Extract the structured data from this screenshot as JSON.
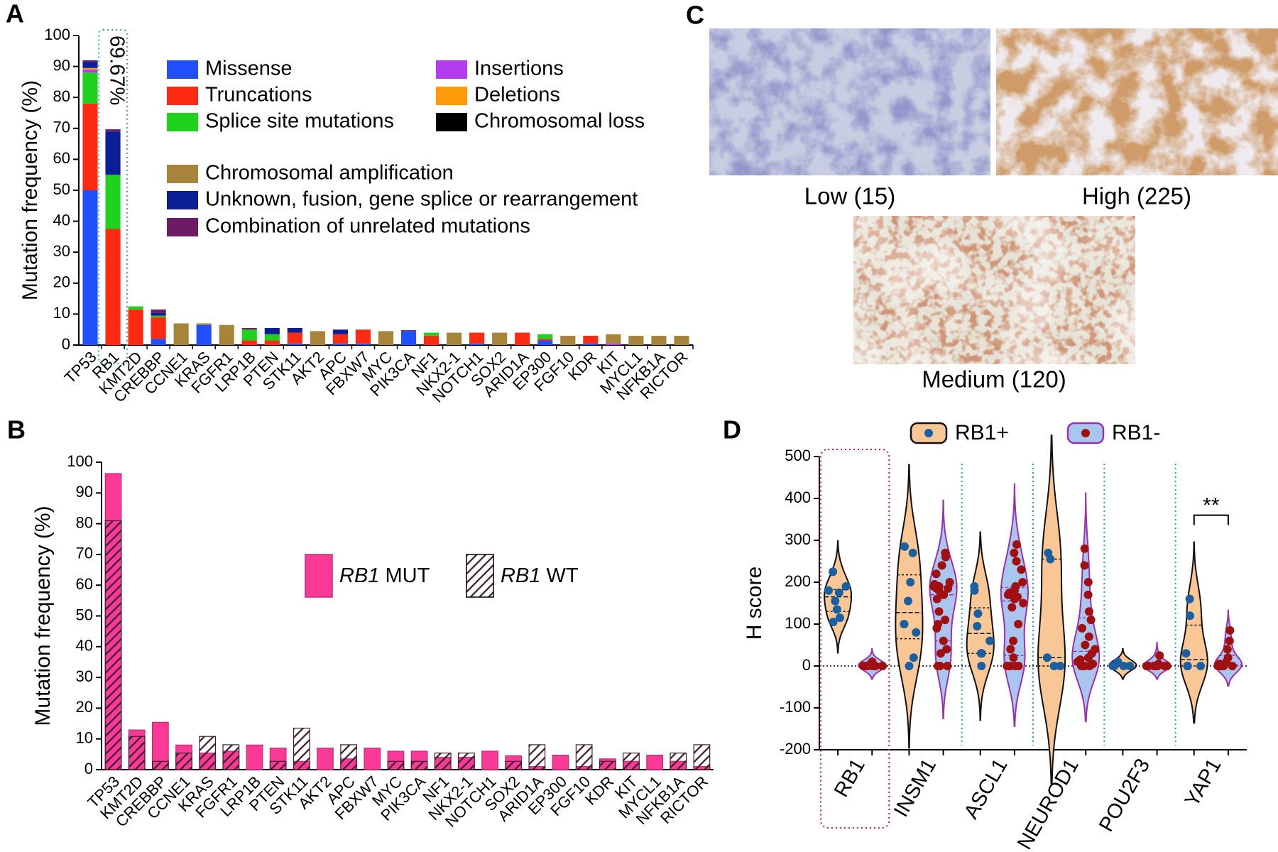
{
  "panel_labels": [
    "A",
    "B",
    "C",
    "D"
  ],
  "panel_c": {
    "images": [
      {
        "label": "Low (15)"
      },
      {
        "label": "High (225)"
      },
      {
        "label": "Medium (120)"
      }
    ]
  },
  "chart_data": [
    {
      "type": "stacked-bar",
      "ylabel": "Mutation frequency (%)",
      "categories": [
        "TP53",
        "RB1",
        "KMT2D",
        "CREBBP",
        "CCNE1",
        "KRAS",
        "FGFR1",
        "LRP1B",
        "PTEN",
        "STK11",
        "AKT2",
        "APC",
        "FBXW7",
        "MYC",
        "PIK3CA",
        "NF1",
        "NKX2-1",
        "NOTCH1",
        "SOX2",
        "ARID1A",
        "EP300",
        "FGF10",
        "KDR",
        "KIT",
        "MYCL1",
        "NFKB1A",
        "RICTOR"
      ],
      "ylim": [
        0,
        100
      ],
      "yticks": [
        0,
        10,
        20,
        30,
        40,
        50,
        60,
        70,
        80,
        90,
        100
      ],
      "annotation": {
        "text": "69.67%",
        "category": "RB1",
        "color": "#e8231b"
      },
      "series": [
        {
          "name": "Missense",
          "color": "#1f4fff",
          "values": [
            50,
            0,
            0,
            2,
            0,
            6.5,
            0,
            0,
            0,
            0.5,
            0,
            0.5,
            0.5,
            0,
            4.5,
            0,
            0,
            0.5,
            0,
            0,
            1.5,
            0,
            0.5,
            0,
            0,
            0,
            0
          ]
        },
        {
          "name": "Truncations",
          "color": "#ff2a12",
          "values": [
            28,
            37.5,
            11.5,
            7,
            0,
            0,
            0,
            1.5,
            1.5,
            3.5,
            0,
            3,
            4.5,
            0,
            0,
            3,
            0,
            3.5,
            0,
            4,
            0.5,
            0,
            2.5,
            0,
            0,
            0,
            0
          ]
        },
        {
          "name": "Splice site mutations",
          "color": "#1ed21e",
          "values": [
            10,
            17.5,
            1,
            0.5,
            0,
            0,
            0,
            3.5,
            2,
            0,
            0,
            0,
            0,
            0,
            0,
            1,
            0,
            0,
            0,
            0,
            1.5,
            0,
            0,
            0,
            0,
            0,
            0
          ]
        },
        {
          "name": "Insertions",
          "color": "#b43cf0",
          "values": [
            1,
            0,
            0,
            0,
            0,
            0,
            0,
            0,
            0,
            0,
            0,
            0,
            0,
            0,
            0,
            0,
            0,
            0,
            0,
            0,
            0,
            0,
            0,
            0.5,
            0,
            0,
            0
          ]
        },
        {
          "name": "Deletions",
          "color": "#ff9a0a",
          "values": [
            0.5,
            0,
            0,
            0,
            0,
            0,
            0,
            0,
            0,
            0,
            0,
            0,
            0,
            0,
            0,
            0,
            0,
            0,
            0,
            0,
            0,
            0,
            0,
            0,
            0,
            0,
            0
          ]
        },
        {
          "name": "Chromosomal loss",
          "color": "#000000",
          "values": [
            0,
            0,
            0,
            0,
            0,
            0,
            0,
            0,
            0,
            0,
            0,
            0,
            0,
            0,
            0,
            0,
            0,
            0,
            0,
            0,
            0,
            0,
            0,
            0,
            0,
            0,
            0
          ]
        },
        {
          "name": "Chromosomal amplification",
          "color": "#a8843a",
          "values": [
            0,
            0,
            0,
            0,
            7,
            0.5,
            6.5,
            0,
            0,
            0,
            4.5,
            0,
            0,
            4.5,
            0,
            0,
            4,
            0,
            4,
            0,
            0,
            3,
            0,
            3,
            3,
            3,
            3
          ]
        },
        {
          "name": "Unknown, fusion, gene splice or rearrangement",
          "color": "#0c1e96",
          "values": [
            2,
            14,
            0,
            1,
            0,
            0,
            0,
            0,
            2,
            1.5,
            0,
            1.5,
            0,
            0,
            0,
            0,
            0,
            0,
            0,
            0,
            0,
            0,
            0,
            0,
            0,
            0,
            0
          ]
        },
        {
          "name": "Combination of unrelated mutations",
          "color": "#6e1a64",
          "values": [
            0.5,
            0.7,
            0,
            1,
            0,
            0,
            0,
            0.5,
            0,
            0,
            0,
            0,
            0,
            0,
            0.3,
            0,
            0,
            0,
            0,
            0,
            0,
            0,
            0,
            0,
            0,
            0,
            0
          ]
        }
      ]
    },
    {
      "type": "overlay-bar",
      "ylabel": "Mutation frequency (%)",
      "categories": [
        "TP53",
        "KMT2D",
        "CREBBP",
        "CCNE1",
        "KRAS",
        "FGFR1",
        "LRP1B",
        "PTEN",
        "STK11",
        "AKT2",
        "APC",
        "FBXW7",
        "MYC",
        "PIK3CA",
        "NF1",
        "NKX2-1",
        "NOTCH1",
        "SOX2",
        "ARID1A",
        "EP300",
        "FGF10",
        "KDR",
        "KIT",
        "MYCL1",
        "NFKB1A",
        "RICTOR"
      ],
      "ylim": [
        0,
        100
      ],
      "yticks": [
        0,
        10,
        20,
        30,
        40,
        50,
        60,
        70,
        80,
        90,
        100
      ],
      "series": [
        {
          "name": "RB1 MUT",
          "color": "#fb3a98",
          "values": [
            96.3,
            12.9,
            15.4,
            8,
            5.4,
            6,
            8,
            7,
            2.7,
            7,
            3.5,
            7,
            6,
            6,
            4,
            4,
            6,
            4.5,
            1,
            4.7,
            1,
            3.5,
            2.7,
            4.7,
            2.7,
            1
          ]
        },
        {
          "name": "RB1 WT",
          "color": "#3b1f2b",
          "pattern": "hatch",
          "values": [
            81,
            10.8,
            2.7,
            5.4,
            10.8,
            8.1,
            0,
            2.7,
            13.5,
            0,
            8.1,
            0,
            2.7,
            2.7,
            5.4,
            5.4,
            0,
            2.7,
            8.1,
            0,
            8.1,
            2.7,
            5.4,
            0,
            5.4,
            8.1
          ]
        }
      ]
    },
    {
      "type": "violin",
      "ylabel": "H score",
      "categories": [
        "RB1",
        "INSM1",
        "ASCL1",
        "NEUROD1",
        "POU2F3",
        "YAP1"
      ],
      "ylim": [
        -200,
        500
      ],
      "yticks": [
        -200,
        -100,
        0,
        100,
        200,
        300,
        400,
        500
      ],
      "significance": {
        "label": "**",
        "category": "YAP1"
      },
      "series": [
        {
          "name": "RB1+",
          "color": "#f9c795",
          "edge_color": "#111111",
          "point_color": "#1a5fa0",
          "values": [
            [
              225,
              190,
              180,
              175,
              155,
              135,
              115,
              105
            ],
            [
              285,
              270,
              200,
              155,
              100,
              80,
              20,
              0
            ],
            [
              190,
              180,
              125,
              95,
              60,
              30,
              30,
              0
            ],
            [
              270,
              255,
              20,
              0,
              0
            ],
            [
              10,
              0,
              0,
              0,
              0
            ],
            [
              160,
              120,
              30,
              0,
              0,
              0
            ]
          ]
        },
        {
          "name": "RB1-",
          "color": "#a9c6ef",
          "edge_color": "#9b2fae",
          "point_color": "#a01010",
          "values": [
            [
              10,
              5,
              5,
              0,
              0,
              0,
              0,
              0,
              0,
              0,
              0,
              0
            ],
            [
              270,
              260,
              240,
              220,
              200,
              195,
              190,
              190,
              190,
              185,
              185,
              180,
              170,
              160,
              130,
              110,
              100,
              90,
              60,
              40,
              30,
              0,
              0,
              0,
              0
            ],
            [
              290,
              270,
              250,
              230,
              200,
              190,
              180,
              175,
              170,
              165,
              160,
              150,
              140,
              100,
              60,
              40,
              20,
              0,
              0,
              0,
              0,
              0
            ],
            [
              280,
              240,
              200,
              170,
              130,
              110,
              90,
              70,
              50,
              40,
              30,
              20,
              15,
              10,
              5,
              0,
              0,
              0,
              0,
              0
            ],
            [
              25,
              5,
              0,
              0,
              0,
              0,
              0,
              0,
              0,
              0
            ],
            [
              85,
              60,
              40,
              20,
              10,
              5,
              0,
              0,
              0,
              0,
              0,
              0
            ]
          ]
        }
      ]
    }
  ]
}
